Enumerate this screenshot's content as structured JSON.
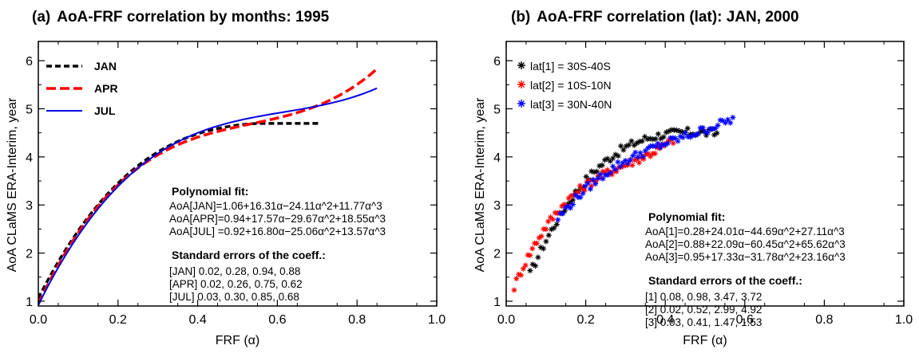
{
  "chart_data": [
    {
      "type": "line",
      "panel_label": "(a)",
      "title": "AoA-FRF correlation by months: 1995",
      "xlabel": "FRF (α)",
      "ylabel": "AoA CLaMS ERA-Interim, year",
      "xlim": [
        0.0,
        1.0
      ],
      "ylim": [
        0.9,
        6.4
      ],
      "xticks": [
        "0.0",
        "0.2",
        "0.4",
        "0.6",
        "0.8",
        "1.0"
      ],
      "yticks": [
        "1",
        "2",
        "3",
        "4",
        "5",
        "6"
      ],
      "legend_position": "top-left",
      "series": [
        {
          "name": "JAN",
          "color": "#000000",
          "style": "dashed",
          "x_range": [
            0.0,
            0.71
          ],
          "clamp_after": 0.55,
          "coeffs": [
            1.06,
            16.31,
            -24.11,
            11.77
          ]
        },
        {
          "name": "APR",
          "color": "#ff0000",
          "style": "dashed",
          "x_range": [
            0.0,
            0.85
          ],
          "coeffs": [
            0.94,
            17.57,
            -29.67,
            18.55
          ]
        },
        {
          "name": "JUL",
          "color": "#0000e6",
          "style": "solid",
          "x_range": [
            0.0,
            0.85
          ],
          "coeffs": [
            0.92,
            16.8,
            -25.06,
            13.57
          ]
        }
      ],
      "annotation": {
        "fit_title": "Polynomial fit:",
        "fit_lines": [
          "AoA[JAN]=1.06+16.31α−24.11α^2+11.77α^3",
          "AoA[APR]=0.94+17.57α−29.67α^2+18.55α^3",
          "AoA[JUL] =0.92+16.80α−25.06α^2+13.57α^3"
        ],
        "err_title": "Standard errors of the coeff.:",
        "err_lines": [
          "[JAN]  0.02, 0.28, 0.94, 0.88",
          "[APR]  0.02, 0.26, 0.75, 0.62",
          "[JUL]  0.03, 0.30, 0.85, 0.68"
        ]
      }
    },
    {
      "type": "scatter",
      "panel_label": "(b)",
      "title": "AoA-FRF correlation (lat): JAN, 2000",
      "xlabel": "FRF (α)",
      "ylabel": "AoA CLaMS ERA-Interim, year",
      "xlim": [
        0.0,
        1.0
      ],
      "ylim": [
        0.9,
        6.4
      ],
      "xticks": [
        "0.0",
        "0.2",
        "0.4",
        "0.6",
        "0.8",
        "1.0"
      ],
      "yticks": [
        "1",
        "2",
        "3",
        "4",
        "5",
        "6"
      ],
      "legend_position": "top-left",
      "series": [
        {
          "name": "lat[1] = 30S-40S",
          "color": "#000000",
          "x_range": [
            0.06,
            0.53
          ],
          "coeffs": [
            0.28,
            24.01,
            -44.69,
            27.11
          ]
        },
        {
          "name": "lat[2] = 10S-10N",
          "color": "#ff0000",
          "x_range": [
            0.02,
            0.42
          ],
          "coeffs": [
            0.88,
            22.09,
            -60.45,
            65.62
          ]
        },
        {
          "name": "lat[3] = 30N-40N",
          "color": "#0000ff",
          "x_range": [
            0.13,
            0.57
          ],
          "coeffs": [
            0.95,
            17.33,
            -31.78,
            23.16
          ]
        }
      ],
      "annotation": {
        "fit_title": "Polynomial fit:",
        "fit_lines": [
          "AoA[1]=0.28+24.01α−44.69α^2+27.11α^3",
          "AoA[2]=0.88+22.09α−60.45α^2+65.62α^3",
          "AoA[3]=0.95+17.33α−31.78α^2+23.16α^3"
        ],
        "err_title": "Standard errors of the coeff.:",
        "err_lines": [
          "[1] 0.08, 0.98, 3.47, 3.72",
          "[2] 0.02, 0.52, 2.99, 4.92",
          "[3] 0.03, 0.41, 1.47, 1.53"
        ]
      }
    }
  ]
}
